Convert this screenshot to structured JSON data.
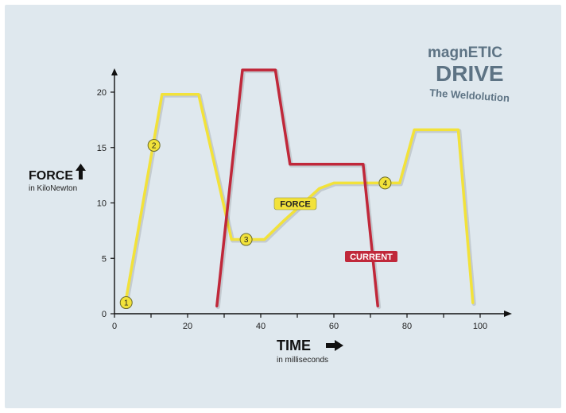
{
  "chart_data": {
    "type": "line",
    "xlim": [
      0,
      100
    ],
    "ylim": [
      0,
      22
    ],
    "x_ticks": [
      0,
      20,
      40,
      60,
      80,
      100
    ],
    "y_ticks": [
      0,
      5,
      10,
      15,
      20
    ],
    "xlabel": "TIME",
    "xlabel_sub": "in milliseconds",
    "ylabel": "FORCE",
    "ylabel_sub": "in KiloNewton",
    "grid": false,
    "series": [
      {
        "name": "FORCE",
        "color": "#f2e23a",
        "label_color": "#f2e23a",
        "label_text_color": "#222222",
        "x": [
          3,
          13,
          23,
          32,
          37,
          41,
          46,
          51,
          56,
          60,
          68,
          73,
          78,
          82,
          94,
          98
        ],
        "y": [
          1,
          19.8,
          19.8,
          6.7,
          6.7,
          6.7,
          8.3,
          9.8,
          11.3,
          11.8,
          11.8,
          11.8,
          11.8,
          16.6,
          16.6,
          1
        ]
      },
      {
        "name": "CURRENT",
        "color": "#c0283a",
        "label_color": "#c0283a",
        "label_text_color": "#ffffff",
        "x": [
          28,
          35,
          44,
          48,
          68,
          72
        ],
        "y": [
          0.7,
          22,
          22,
          13.5,
          13.5,
          0.7
        ]
      }
    ],
    "markers": [
      {
        "label": "1",
        "x": 3.2,
        "y": 1
      },
      {
        "label": "2",
        "x": 10.8,
        "y": 15.2
      },
      {
        "label": "3",
        "x": 36,
        "y": 6.7
      },
      {
        "label": "4",
        "x": 74,
        "y": 11.8
      }
    ]
  },
  "logo": {
    "line1": "magnETIC",
    "line2": "DRIVE",
    "tagline": "The Weldolution",
    "color": "#5d7384"
  }
}
